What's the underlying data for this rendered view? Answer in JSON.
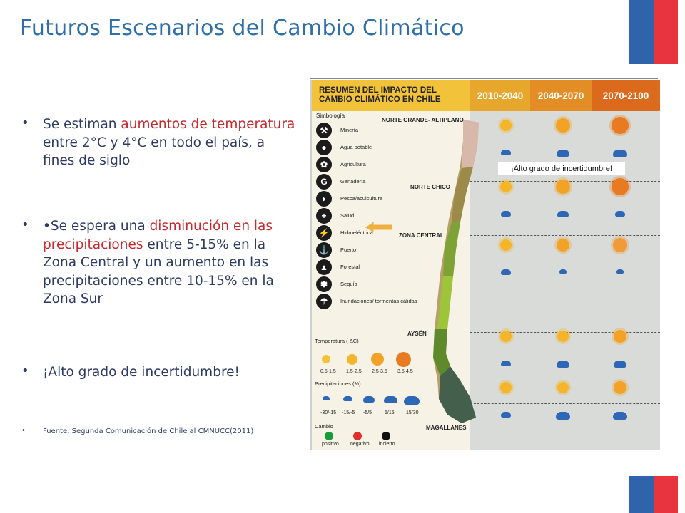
{
  "title": "Futuros Escenarios del Cambio Climático",
  "bullets": {
    "b1_pre": "Se estiman ",
    "b1_red": "aumentos de temperatura",
    "b1_post": " entre 2°C y 4°C en todo el país, a fines de siglo",
    "b2_pre": "•Se espera una ",
    "b2_red": "disminución en las precipitaciones",
    "b2_post": " entre 5-15% en la Zona Central y un aumento en las precipitaciones entre 10-15% en la Zona Sur",
    "b3": "¡Alto grado de incertidumbre!",
    "b4": "Fuente: Segunda Comunicación de Chile al CMNUCC(2011)"
  },
  "infographic": {
    "title_line1": "RESUMEN DEL IMPACTO DEL",
    "title_line2": "CAMBIO CLIMÁTICO EN CHILE",
    "periods": [
      "2010-2040",
      "2040-2070",
      "2070-2100"
    ],
    "simbologia": "Simbología",
    "legend": [
      "Minería",
      "Agua potable",
      "Agricultura",
      "Ganadería",
      "Pesca/acuicultura",
      "Salud",
      "Hidroeléctrica",
      "Puerto",
      "Forestal",
      "Sequía",
      "Inundaciones/ tormentas cálidas"
    ],
    "legend_icons": [
      "pick-icon",
      "water-drop-icon",
      "plant-icon",
      "g-icon",
      "fish-icon",
      "health-cross-icon",
      "lightning-icon",
      "anchor-icon",
      "tree-icon",
      "drought-icon",
      "storm-icon"
    ],
    "zones": [
      "NORTE GRANDE- ALTIPLANO",
      "NORTE CHICO",
      "ZONA CENTRAL",
      "AYSÉN",
      "MAGALLANES"
    ],
    "temp_title": "Temperatura ( ΔC)",
    "temp_ranges": [
      "0.5-1.5",
      "1.5-2.5",
      "2.5-3.5",
      "3.5-4.5"
    ],
    "precip_title": "Precipitaciones (%)",
    "precip_ranges": [
      "-30/-15",
      "-15/-5",
      "-5/5",
      "5/15",
      "15/30"
    ],
    "cambio_title": "Cambio",
    "cambio": [
      "positivo",
      "negativo",
      "incierto"
    ],
    "cambio_colors": [
      "#1a9b3a",
      "#e0302a",
      "#111111"
    ],
    "overlay": "¡Alto grado de incertidumbre!"
  },
  "colors": {
    "title": "#2f6fa8",
    "accent_red": "#c8282c",
    "flag_blue": "#2f64ad",
    "flag_red": "#e8343f",
    "header_yellow": "#f2c23a"
  }
}
